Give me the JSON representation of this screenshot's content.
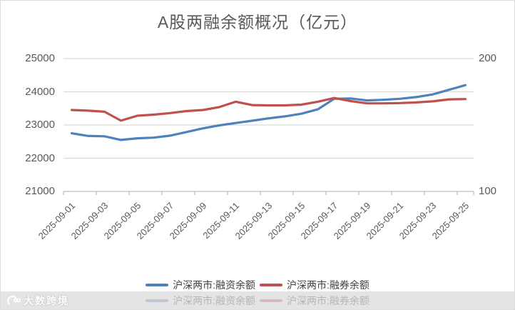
{
  "title": "A股两融余额概况（亿元）",
  "chart_data": {
    "type": "line",
    "x": [
      "2025-09-01",
      "2025-09-02",
      "2025-09-03",
      "2025-09-04",
      "2025-09-05",
      "2025-09-06",
      "2025-09-07",
      "2025-09-08",
      "2025-09-09",
      "2025-09-10",
      "2025-09-11",
      "2025-09-12",
      "2025-09-13",
      "2025-09-14",
      "2025-09-15",
      "2025-09-16",
      "2025-09-17",
      "2025-09-18",
      "2025-09-19",
      "2025-09-20",
      "2025-09-21",
      "2025-09-22",
      "2025-09-23",
      "2025-09-24",
      "2025-09-25"
    ],
    "x_tick_labels": [
      "2025-09-01",
      "2025-09-03",
      "2025-09-05",
      "2025-09-07",
      "2025-09-09",
      "2025-09-11",
      "2025-09-13",
      "2025-09-15",
      "2025-09-17",
      "2025-09-19",
      "2025-09-21",
      "2025-09-23",
      "2025-09-25"
    ],
    "series": [
      {
        "name": "沪深两市:融资余额",
        "axis": "left",
        "color": "#4F81BD",
        "values": [
          22750,
          22670,
          22660,
          22550,
          22600,
          22620,
          22680,
          22790,
          22900,
          22990,
          23060,
          23130,
          23200,
          23260,
          23340,
          23470,
          23790,
          23800,
          23740,
          23760,
          23790,
          23840,
          23920,
          24060,
          24200
        ]
      },
      {
        "name": "沪深两市:融券余额",
        "axis": "right",
        "color": "#C0504D",
        "values": [
          161.3,
          160.8,
          160.0,
          153.3,
          157.0,
          157.8,
          159.0,
          160.5,
          161.3,
          163.5,
          167.5,
          165.0,
          164.8,
          164.8,
          165.3,
          167.5,
          170.3,
          168.0,
          166.3,
          166.3,
          166.5,
          167.0,
          167.8,
          169.3,
          169.5
        ]
      }
    ],
    "left_axis": {
      "min": 21000,
      "max": 25000,
      "ticks": [
        25000,
        24000,
        23000,
        22000,
        21000
      ]
    },
    "right_axis": {
      "min": 100,
      "max": 200,
      "ticks": [
        200,
        100
      ]
    },
    "grid": true,
    "legend_position": "bottom"
  },
  "legend": {
    "items": [
      {
        "label": "沪深两市:融资余额",
        "color": "#4F81BD"
      },
      {
        "label": "沪深两市:融券余额",
        "color": "#C0504D"
      }
    ]
  },
  "watermark": {
    "text": "大数跨境"
  },
  "colors": {
    "blue": "#4F81BD",
    "red": "#C0504D",
    "title_text": "#595959",
    "axis_label": "#595959",
    "gridline": "#D9D9D9",
    "axis_line": "#BFBFBF",
    "watermark_bar": "#E4E4E4"
  }
}
